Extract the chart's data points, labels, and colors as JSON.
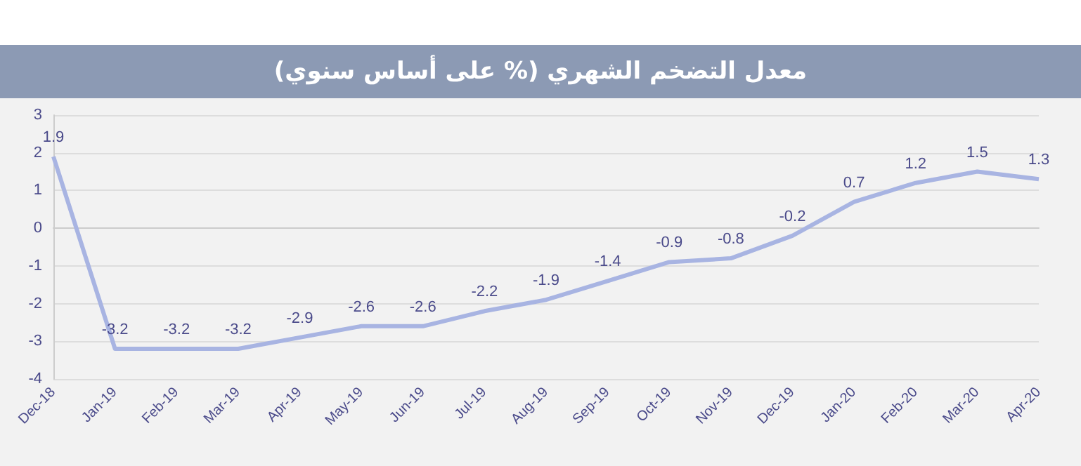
{
  "chart_data": {
    "type": "line",
    "title": "معدل التضخم الشهري (% على أساس سنوي)",
    "categories": [
      "Dec-18",
      "Jan-19",
      "Feb-19",
      "Mar-19",
      "Apr-19",
      "May-19",
      "Jun-19",
      "Jul-19",
      "Aug-19",
      "Sep-19",
      "Oct-19",
      "Nov-19",
      "Dec-19",
      "Jan-20",
      "Feb-20",
      "Mar-20",
      "Apr-20"
    ],
    "series": [
      {
        "color": "#a8b4e2",
        "values": [
          1.9,
          -3.2,
          -3.2,
          -3.2,
          -2.9,
          -2.6,
          -2.6,
          -2.2,
          -1.9,
          -1.4,
          -0.9,
          -0.8,
          -0.2,
          0.7,
          1.2,
          1.5,
          1.3
        ]
      }
    ],
    "ylim": [
      -4,
      3
    ],
    "yticks": [
      -4,
      -3,
      -2,
      -1,
      0,
      1,
      2,
      3
    ],
    "grid": "y",
    "data_labels": true,
    "marker": "none",
    "line_style": "solid"
  }
}
